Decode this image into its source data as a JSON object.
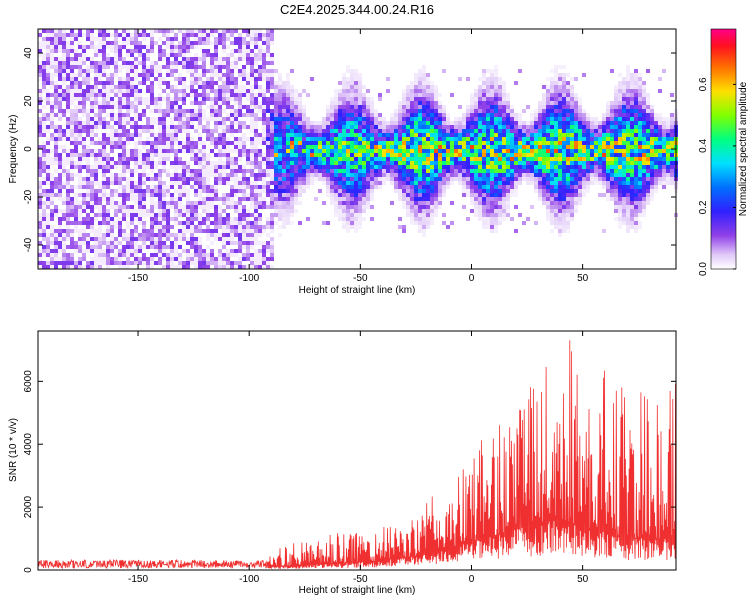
{
  "title": "C2E4.2025.344.00.24.R16",
  "chart_data": [
    {
      "type": "heatmap",
      "xlabel": "Height of straight line (km)",
      "ylabel": "Frequency (Hz)",
      "xlim": [
        -195,
        92
      ],
      "ylim": [
        -50,
        50
      ],
      "xticks": [
        -150,
        -100,
        -50,
        0,
        50
      ],
      "yticks": [
        -40,
        -20,
        0,
        20,
        40
      ],
      "colorbar": {
        "label": "Normalized spectral amplitude",
        "range": [
          0.0,
          0.78
        ],
        "ticks": [
          "0.0",
          "0.2",
          "0.4",
          "0.6"
        ],
        "colors": [
          "#ffffff",
          "#c8a0f0",
          "#8a2be2",
          "#0000ff",
          "#00e5ff",
          "#00ff60",
          "#c0ff00",
          "#ffd000",
          "#ff3000",
          "#ff0080"
        ]
      },
      "description_regions": [
        {
          "x_range": [
            -195,
            -90
          ],
          "freq_range": [
            -50,
            50
          ],
          "level": "low (0.0-0.15), noise"
        },
        {
          "x_range": [
            -90,
            92
          ],
          "freq_range": [
            -15,
            15
          ],
          "level": "signal band centred near 0 Hz, peaks 0.4-0.7"
        }
      ]
    },
    {
      "type": "line",
      "color": "#f03030",
      "xlabel": "Height of straight line (km)",
      "ylabel": "SNR (10 * v/v)",
      "xlim": [
        -195,
        92
      ],
      "ylim": [
        0,
        7600
      ],
      "xticks": [
        -150,
        -100,
        -50,
        0,
        50
      ],
      "yticks": [
        0,
        2000,
        4000,
        6000
      ],
      "envelope": {
        "x": [
          -195,
          -150,
          -100,
          -92,
          -85,
          -75,
          -60,
          -50,
          -40,
          -30,
          -20,
          -10,
          0,
          10,
          20,
          30,
          40,
          45,
          50,
          55,
          60,
          70,
          80,
          92
        ],
        "base": [
          80,
          80,
          80,
          80,
          120,
          150,
          200,
          250,
          300,
          400,
          500,
          700,
          900,
          1100,
          1300,
          1500,
          1600,
          1500,
          1400,
          1300,
          1200,
          1000,
          1000,
          1000
        ],
        "peak": [
          350,
          350,
          350,
          400,
          800,
          900,
          1200,
          1300,
          1400,
          1500,
          2200,
          2800,
          3600,
          5000,
          5600,
          6300,
          7000,
          7400,
          6800,
          6200,
          6400,
          6000,
          5800,
          6000
        ]
      }
    }
  ]
}
